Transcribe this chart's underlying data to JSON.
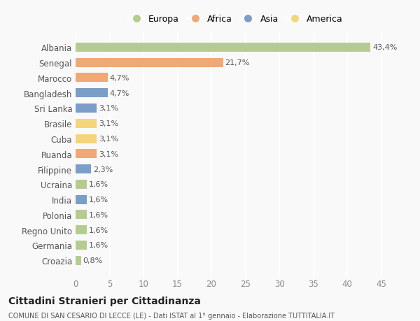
{
  "countries": [
    "Albania",
    "Senegal",
    "Marocco",
    "Bangladesh",
    "Sri Lanka",
    "Brasile",
    "Cuba",
    "Ruanda",
    "Filippine",
    "Ucraina",
    "India",
    "Polonia",
    "Regno Unito",
    "Germania",
    "Croazia"
  ],
  "values": [
    43.4,
    21.7,
    4.7,
    4.7,
    3.1,
    3.1,
    3.1,
    3.1,
    2.3,
    1.6,
    1.6,
    1.6,
    1.6,
    1.6,
    0.8
  ],
  "labels": [
    "43,4%",
    "21,7%",
    "4,7%",
    "4,7%",
    "3,1%",
    "3,1%",
    "3,1%",
    "3,1%",
    "2,3%",
    "1,6%",
    "1,6%",
    "1,6%",
    "1,6%",
    "1,6%",
    "0,8%"
  ],
  "colors": [
    "#b5cc8e",
    "#f0a876",
    "#f0a876",
    "#7b9ec9",
    "#7b9ec9",
    "#f5d57a",
    "#f5d57a",
    "#f0a876",
    "#7b9ec9",
    "#b5cc8e",
    "#7b9ec9",
    "#b5cc8e",
    "#b5cc8e",
    "#b5cc8e",
    "#b5cc8e"
  ],
  "legend_labels": [
    "Europa",
    "Africa",
    "Asia",
    "America"
  ],
  "legend_colors": [
    "#b5cc8e",
    "#f0a876",
    "#7b9ec9",
    "#f5d57a"
  ],
  "title": "Cittadini Stranieri per Cittadinanza",
  "subtitle": "COMUNE DI SAN CESARIO DI LECCE (LE) - Dati ISTAT al 1° gennaio - Elaborazione TUTTITALIA.IT",
  "xlim": [
    0,
    47
  ],
  "xticks": [
    0,
    5,
    10,
    15,
    20,
    25,
    30,
    35,
    40,
    45
  ],
  "background_color": "#f9f9f9",
  "plot_bg_color": "#f9f9f9",
  "grid_color": "#ffffff",
  "bar_height": 0.6,
  "label_fontsize": 8,
  "ytick_fontsize": 8.5,
  "xtick_fontsize": 8.5
}
